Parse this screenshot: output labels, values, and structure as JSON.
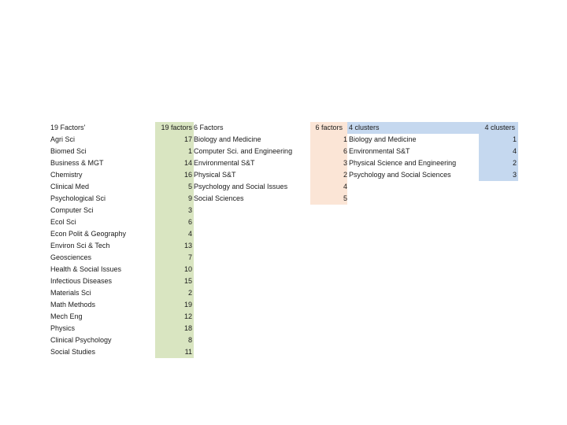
{
  "colors": {
    "green_fill": "#d9e5c1",
    "peach_fill": "#fbe5d6",
    "blue_fill": "#c5d8ef"
  },
  "table19": {
    "header_label": "19 Factors'",
    "header_num": "19 factors",
    "rows": [
      {
        "label": "Agri Sci",
        "num": "17"
      },
      {
        "label": "Biomed Sci",
        "num": "1"
      },
      {
        "label": "Business & MGT",
        "num": "14"
      },
      {
        "label": "Chemistry",
        "num": "16"
      },
      {
        "label": "Clinical Med",
        "num": "5"
      },
      {
        "label": "Psychological Sci",
        "num": "9"
      },
      {
        "label": "Computer Sci",
        "num": "3"
      },
      {
        "label": "Ecol Sci",
        "num": "6"
      },
      {
        "label": "Econ Polit & Geography",
        "num": "4"
      },
      {
        "label": "Environ Sci & Tech",
        "num": "13"
      },
      {
        "label": "Geosciences",
        "num": "7"
      },
      {
        "label": "Health & Social Issues",
        "num": "10"
      },
      {
        "label": "Infectious Diseases",
        "num": "15"
      },
      {
        "label": "Materials Sci",
        "num": "2"
      },
      {
        "label": "Math Methods",
        "num": "19"
      },
      {
        "label": "Mech Eng",
        "num": "12"
      },
      {
        "label": "Physics",
        "num": "18"
      },
      {
        "label": "Clinical Psychology",
        "num": "8"
      },
      {
        "label": "Social Studies",
        "num": "11"
      }
    ]
  },
  "table6": {
    "header_label": "6 Factors",
    "header_num": "6 factors",
    "rows": [
      {
        "label": "Biology and Medicine",
        "num": "1"
      },
      {
        "label": "Computer Sci. and Engineering",
        "num": "6"
      },
      {
        "label": "Environmental S&T",
        "num": "3"
      },
      {
        "label": "Physical S&T",
        "num": "2"
      },
      {
        "label": "Psychology and Social Issues",
        "num": "4"
      },
      {
        "label": "Social Sciences",
        "num": "5"
      }
    ]
  },
  "table4": {
    "header_label": "4 clusters",
    "header_num": "4 clusters",
    "rows": [
      {
        "label": "Biology and Medicine",
        "num": "1"
      },
      {
        "label": "Environmental S&T",
        "num": "4"
      },
      {
        "label": "Physical Science and Engineering",
        "num": "2"
      },
      {
        "label": "Psychology and Social Sciences",
        "num": "3"
      }
    ]
  }
}
